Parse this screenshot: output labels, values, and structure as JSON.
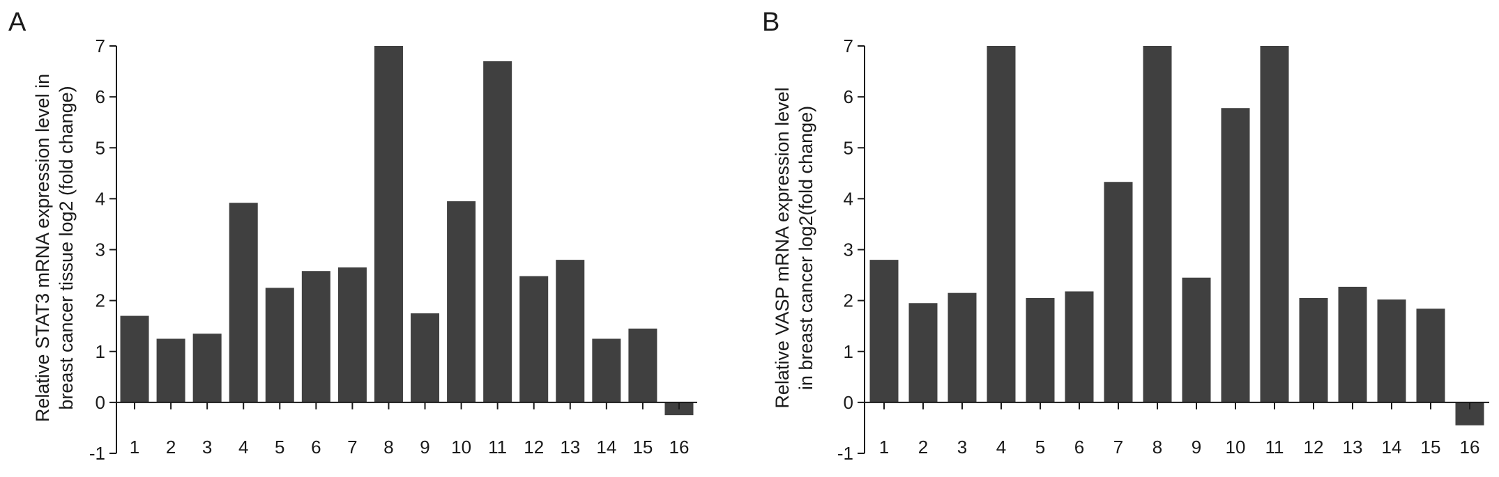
{
  "chart_data": [
    {
      "type": "bar",
      "panel_label": "A",
      "categories": [
        "1",
        "2",
        "3",
        "4",
        "5",
        "6",
        "7",
        "8",
        "9",
        "10",
        "11",
        "12",
        "13",
        "14",
        "15",
        "16"
      ],
      "values": [
        1.7,
        1.25,
        1.35,
        3.92,
        2.25,
        2.58,
        2.65,
        7.0,
        1.75,
        3.95,
        6.7,
        2.48,
        2.8,
        1.25,
        1.45,
        -0.25
      ],
      "ylabel_line1": "Relative STAT3 mRNA expression level in",
      "ylabel_line2": "breast cancer tissue log2 (fold change)",
      "xlabel": "",
      "ylim": [
        -1,
        7
      ],
      "yticks": [
        -1,
        0,
        1,
        2,
        3,
        4,
        5,
        6,
        7
      ],
      "ytick_labels": [
        "-1",
        "0",
        "1",
        "2",
        "3",
        "4",
        "5",
        "6",
        "7"
      ],
      "bar_color": "#404040",
      "grid": false,
      "legend": "none"
    },
    {
      "type": "bar",
      "panel_label": "B",
      "categories": [
        "1",
        "2",
        "3",
        "4",
        "5",
        "6",
        "7",
        "8",
        "9",
        "10",
        "11",
        "12",
        "13",
        "14",
        "15",
        "16"
      ],
      "values": [
        2.8,
        1.95,
        2.15,
        7.0,
        2.05,
        2.18,
        4.33,
        7.0,
        2.45,
        5.78,
        7.0,
        2.05,
        2.27,
        2.02,
        1.84,
        -0.45
      ],
      "ylabel_line1": "Relative VASP mRNA expression level",
      "ylabel_line2": "in breast cancer log2(fold change)",
      "xlabel": "",
      "ylim": [
        -1,
        7
      ],
      "yticks": [
        -1,
        0,
        1,
        2,
        3,
        4,
        5,
        6,
        7
      ],
      "ytick_labels": [
        "-1",
        "0",
        "1",
        "2",
        "3",
        "4",
        "5",
        "6",
        "7"
      ],
      "bar_color": "#404040",
      "grid": false,
      "legend": "none"
    }
  ]
}
